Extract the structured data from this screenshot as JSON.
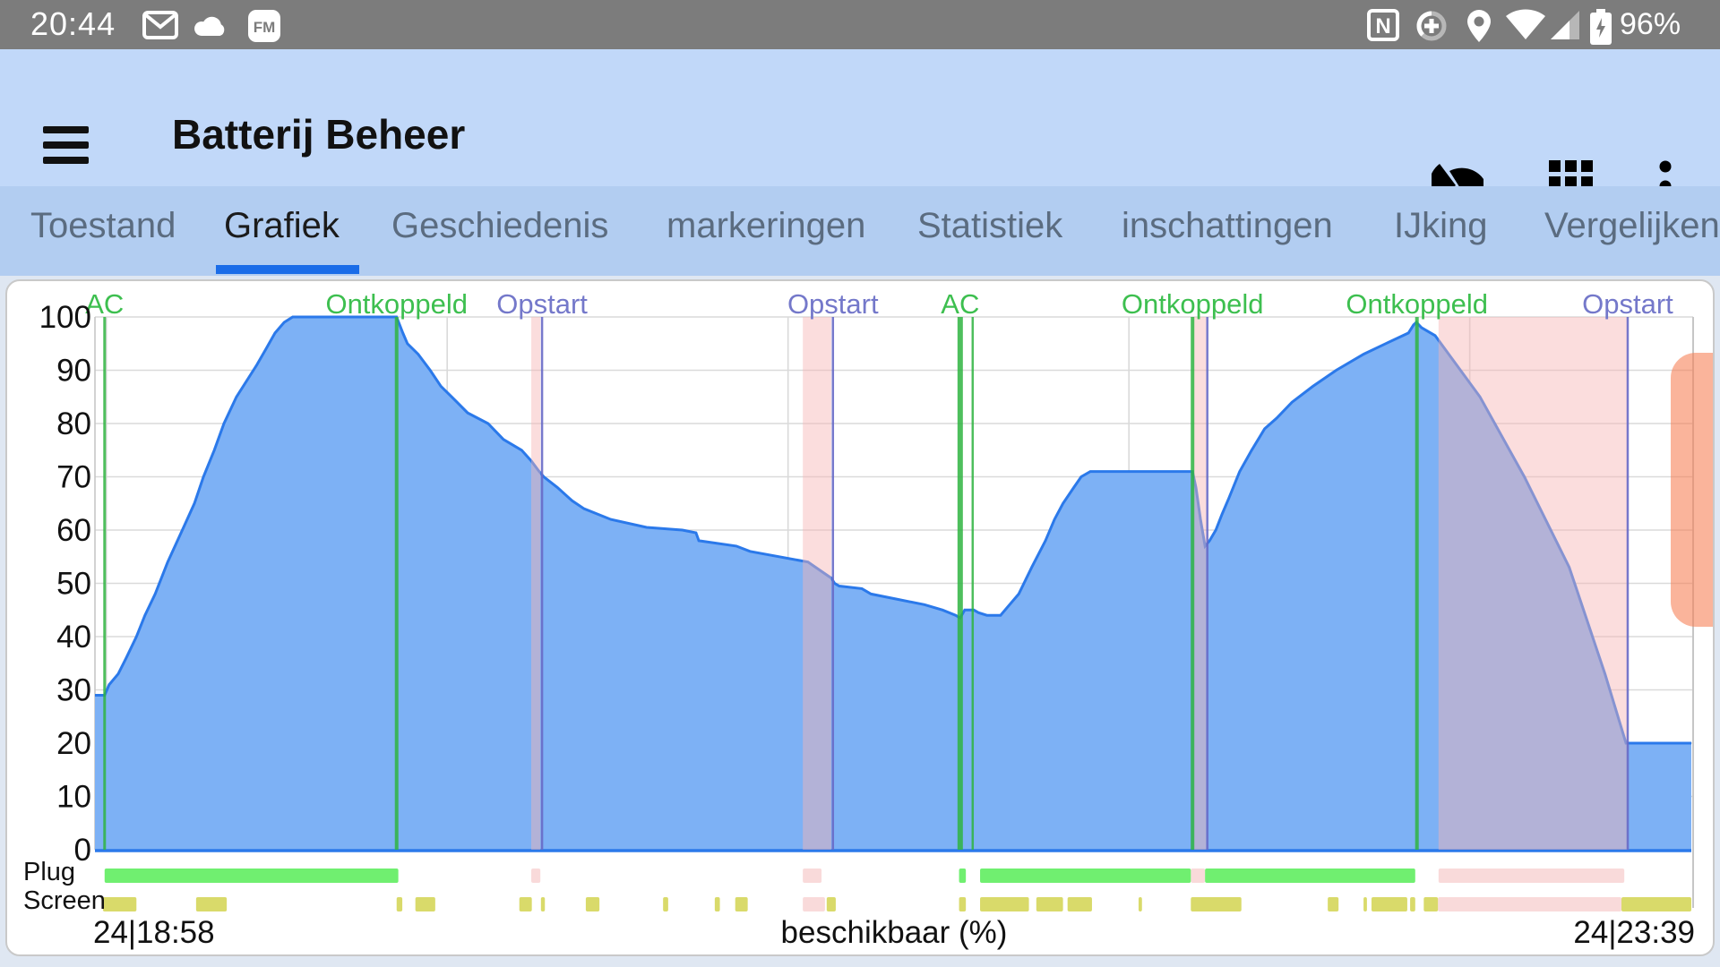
{
  "status_bar": {
    "time": "20:44",
    "battery_percent": "96%",
    "icons_left": [
      "gmail-icon",
      "cloud-icon",
      "fm-icon"
    ],
    "fm_badge_text": "FM",
    "nfc_letter": "N",
    "icons_right": [
      "nfc-icon",
      "data-saver-icon",
      "location-icon",
      "wifi-icon",
      "cell-signal-icon",
      "battery-charging-icon"
    ]
  },
  "app_bar": {
    "title": "Batterij Beheer",
    "icons": [
      "menu-icon",
      "pie-chart-icon",
      "grid-icon",
      "overflow-menu-icon"
    ]
  },
  "tabs": {
    "items": [
      {
        "label": "Toestand",
        "selected": false
      },
      {
        "label": "Grafiek",
        "selected": true
      },
      {
        "label": "Geschiedenis",
        "selected": false
      },
      {
        "label": "markeringen",
        "selected": false
      },
      {
        "label": "Statistiek",
        "selected": false
      },
      {
        "label": "inschattingen",
        "selected": false
      },
      {
        "label": "IJking",
        "selected": false
      },
      {
        "label": "Vergelijken",
        "selected": false
      }
    ]
  },
  "chart": {
    "x_start_label": "24|18:58",
    "x_axis_label": "beschikbaar (%)",
    "x_end_label": "24|23:39",
    "plug_row_label": "Plug",
    "screen_row_label": "Screen"
  },
  "chart_data": {
    "type": "area",
    "title": "beschikbaar (%)",
    "ylabel": "beschikbaar (%)",
    "y_ticks": [
      0,
      10,
      20,
      30,
      40,
      50,
      60,
      70,
      80,
      90,
      100
    ],
    "ylim": [
      0,
      100
    ],
    "x_unit": "minutes after 24|18:58",
    "xlim": [
      0,
      281
    ],
    "x_start_time": "24|18:58",
    "x_end_time": "24|23:39",
    "grid": true,
    "hour_gridlines_t": [
      2,
      62,
      122,
      182,
      242
    ],
    "series": [
      {
        "name": "beschikbaar (%)",
        "points": [
          [
            0,
            29
          ],
          [
            1.7,
            29
          ],
          [
            2.5,
            31
          ],
          [
            4.1,
            33
          ],
          [
            5.5,
            36
          ],
          [
            7.3,
            40
          ],
          [
            8.8,
            44
          ],
          [
            10.6,
            48
          ],
          [
            12.8,
            54
          ],
          [
            15.8,
            61
          ],
          [
            17.5,
            65
          ],
          [
            19.1,
            70
          ],
          [
            21,
            75
          ],
          [
            22.7,
            80
          ],
          [
            24.9,
            85
          ],
          [
            28.5,
            91
          ],
          [
            30.1,
            94
          ],
          [
            31.7,
            97
          ],
          [
            33.3,
            99
          ],
          [
            34.8,
            100
          ],
          [
            53.1,
            100
          ],
          [
            54.2,
            97
          ],
          [
            55,
            95
          ],
          [
            56.9,
            93
          ],
          [
            59,
            90
          ],
          [
            60.9,
            87
          ],
          [
            62.8,
            85
          ],
          [
            65.6,
            82
          ],
          [
            69.2,
            80
          ],
          [
            71.9,
            77
          ],
          [
            75.1,
            75
          ],
          [
            76.8,
            73
          ],
          [
            78.2,
            71
          ],
          [
            79,
            70
          ],
          [
            81.4,
            68
          ],
          [
            84,
            65.5
          ],
          [
            86.1,
            64
          ],
          [
            90.8,
            62
          ],
          [
            97.1,
            60.5
          ],
          [
            103.4,
            60
          ],
          [
            105.8,
            59.5
          ],
          [
            106.3,
            58
          ],
          [
            112.9,
            57
          ],
          [
            115.3,
            56
          ],
          [
            125.5,
            54
          ],
          [
            129.6,
            51
          ],
          [
            130.2,
            50
          ],
          [
            131,
            49.5
          ],
          [
            135,
            49
          ],
          [
            136.6,
            48
          ],
          [
            141.3,
            47
          ],
          [
            146,
            46
          ],
          [
            149.2,
            45
          ],
          [
            151.5,
            44
          ],
          [
            152.3,
            43.5
          ],
          [
            153.1,
            45
          ],
          [
            154.7,
            45
          ],
          [
            155.5,
            44.5
          ],
          [
            157,
            44
          ],
          [
            159.4,
            44
          ],
          [
            161,
            46
          ],
          [
            162.6,
            48
          ],
          [
            164.9,
            53
          ],
          [
            167.3,
            58
          ],
          [
            168.9,
            62
          ],
          [
            170.4,
            65
          ],
          [
            172.3,
            68
          ],
          [
            173.6,
            70
          ],
          [
            175.2,
            71
          ],
          [
            193.2,
            71
          ],
          [
            193.8,
            68
          ],
          [
            194.6,
            62
          ],
          [
            195.4,
            57
          ],
          [
            196.2,
            58
          ],
          [
            197.3,
            60
          ],
          [
            198.4,
            63
          ],
          [
            199.6,
            66
          ],
          [
            201.5,
            71
          ],
          [
            203.6,
            75
          ],
          [
            205.9,
            79
          ],
          [
            208,
            81
          ],
          [
            210.7,
            84
          ],
          [
            214.4,
            87
          ],
          [
            218.5,
            90
          ],
          [
            223.3,
            93
          ],
          [
            227.2,
            95
          ],
          [
            231.2,
            97
          ],
          [
            232.1,
            98.5
          ],
          [
            232.6,
            99
          ],
          [
            233.5,
            98
          ],
          [
            235.9,
            96.5
          ],
          [
            243.8,
            85
          ],
          [
            251.6,
            70
          ],
          [
            259.5,
            53
          ],
          [
            265.8,
            33
          ],
          [
            269.5,
            20
          ],
          [
            281,
            20
          ]
        ]
      }
    ],
    "events": [
      {
        "t": 1.7,
        "label": "AC",
        "kind": "ac",
        "line_width": 3
      },
      {
        "t": 53.1,
        "label": "Ontkoppeld",
        "kind": "unplug",
        "line_width": 4
      },
      {
        "t": 78.7,
        "label": "Opstart",
        "kind": "boot",
        "line_width": 2.5
      },
      {
        "t": 129.9,
        "label": "Opstart",
        "kind": "boot",
        "line_width": 2.5
      },
      {
        "t": 152.3,
        "label": "AC",
        "kind": "ac",
        "line_width": 6
      },
      {
        "t": 193.2,
        "label": "Ontkoppeld",
        "kind": "unplug",
        "line_width": 4
      },
      {
        "t": 232.7,
        "label": "Ontkoppeld",
        "kind": "unplug",
        "line_width": 4
      },
      {
        "t": 269.8,
        "label": "Opstart",
        "kind": "boot",
        "line_width": 2.5
      }
    ],
    "extra_lines": [
      {
        "t": 154.5,
        "kind": "ac",
        "line_width": 2.5
      },
      {
        "t": 195.8,
        "kind": "boot",
        "line_width": 2.5
      }
    ],
    "reboot_bands_t": [
      [
        76.8,
        78.4
      ],
      [
        124.6,
        129.6
      ],
      [
        193.4,
        195.6
      ],
      [
        236.5,
        269.8
      ]
    ],
    "plug_row": {
      "charging_t": [
        [
          1.7,
          53.4
        ],
        [
          152.1,
          153.3
        ],
        [
          155.8,
          192.9
        ],
        [
          195.4,
          232.4
        ]
      ],
      "off_t": [
        [
          76.8,
          78.4
        ],
        [
          124.6,
          127.9
        ],
        [
          192.9,
          195.4
        ],
        [
          236.5,
          269.2
        ]
      ]
    },
    "screen_row": {
      "on_t": [
        [
          1.4,
          7.3
        ],
        [
          17.8,
          23.2
        ],
        [
          53.1,
          54.1
        ],
        [
          56.4,
          59.9
        ],
        [
          74.7,
          76.9
        ],
        [
          78.5,
          79.2
        ],
        [
          86.4,
          88.8
        ],
        [
          100,
          100.9
        ],
        [
          109.1,
          110
        ],
        [
          112.7,
          114.9
        ],
        [
          128.8,
          130.4
        ],
        [
          152.1,
          153.3
        ],
        [
          155.8,
          164.4
        ],
        [
          165.7,
          170.4
        ],
        [
          171.2,
          175.5
        ],
        [
          183.7,
          184.3
        ],
        [
          192.9,
          201.8
        ],
        [
          217,
          218.9
        ],
        [
          223.3,
          223.9
        ],
        [
          224.7,
          231
        ],
        [
          231.5,
          232.4
        ],
        [
          233.9,
          236.4
        ],
        [
          268.7,
          281
        ]
      ],
      "off_t": [
        [
          124.6,
          128.5
        ],
        [
          236.4,
          268.7
        ]
      ]
    },
    "legend": "none"
  },
  "colors": {
    "status_bar_bg": "#7c7c7c",
    "app_bar_bg": "#c1d8f9",
    "tab_bar_bg": "#b2cdf1",
    "tab_underline": "#1a6ce8",
    "area_fill": "#7db1f5",
    "area_stroke": "#2b79ea",
    "grid_line": "#dadada",
    "plot_border": "#c6c6c6",
    "event_green": "rgba(47,180,65,0.85)",
    "event_purple": "rgba(104,106,198,0.9)",
    "label_green": "#3dbf4f",
    "label_purple": "#7478ca",
    "reboot_band": "rgba(246,180,180,0.45)",
    "plug_charging": "#70ef70",
    "plug_off": "#f9dada",
    "screen_on": "#d9da6a",
    "scroll_handle": "rgba(246,126,82,0.58)"
  }
}
